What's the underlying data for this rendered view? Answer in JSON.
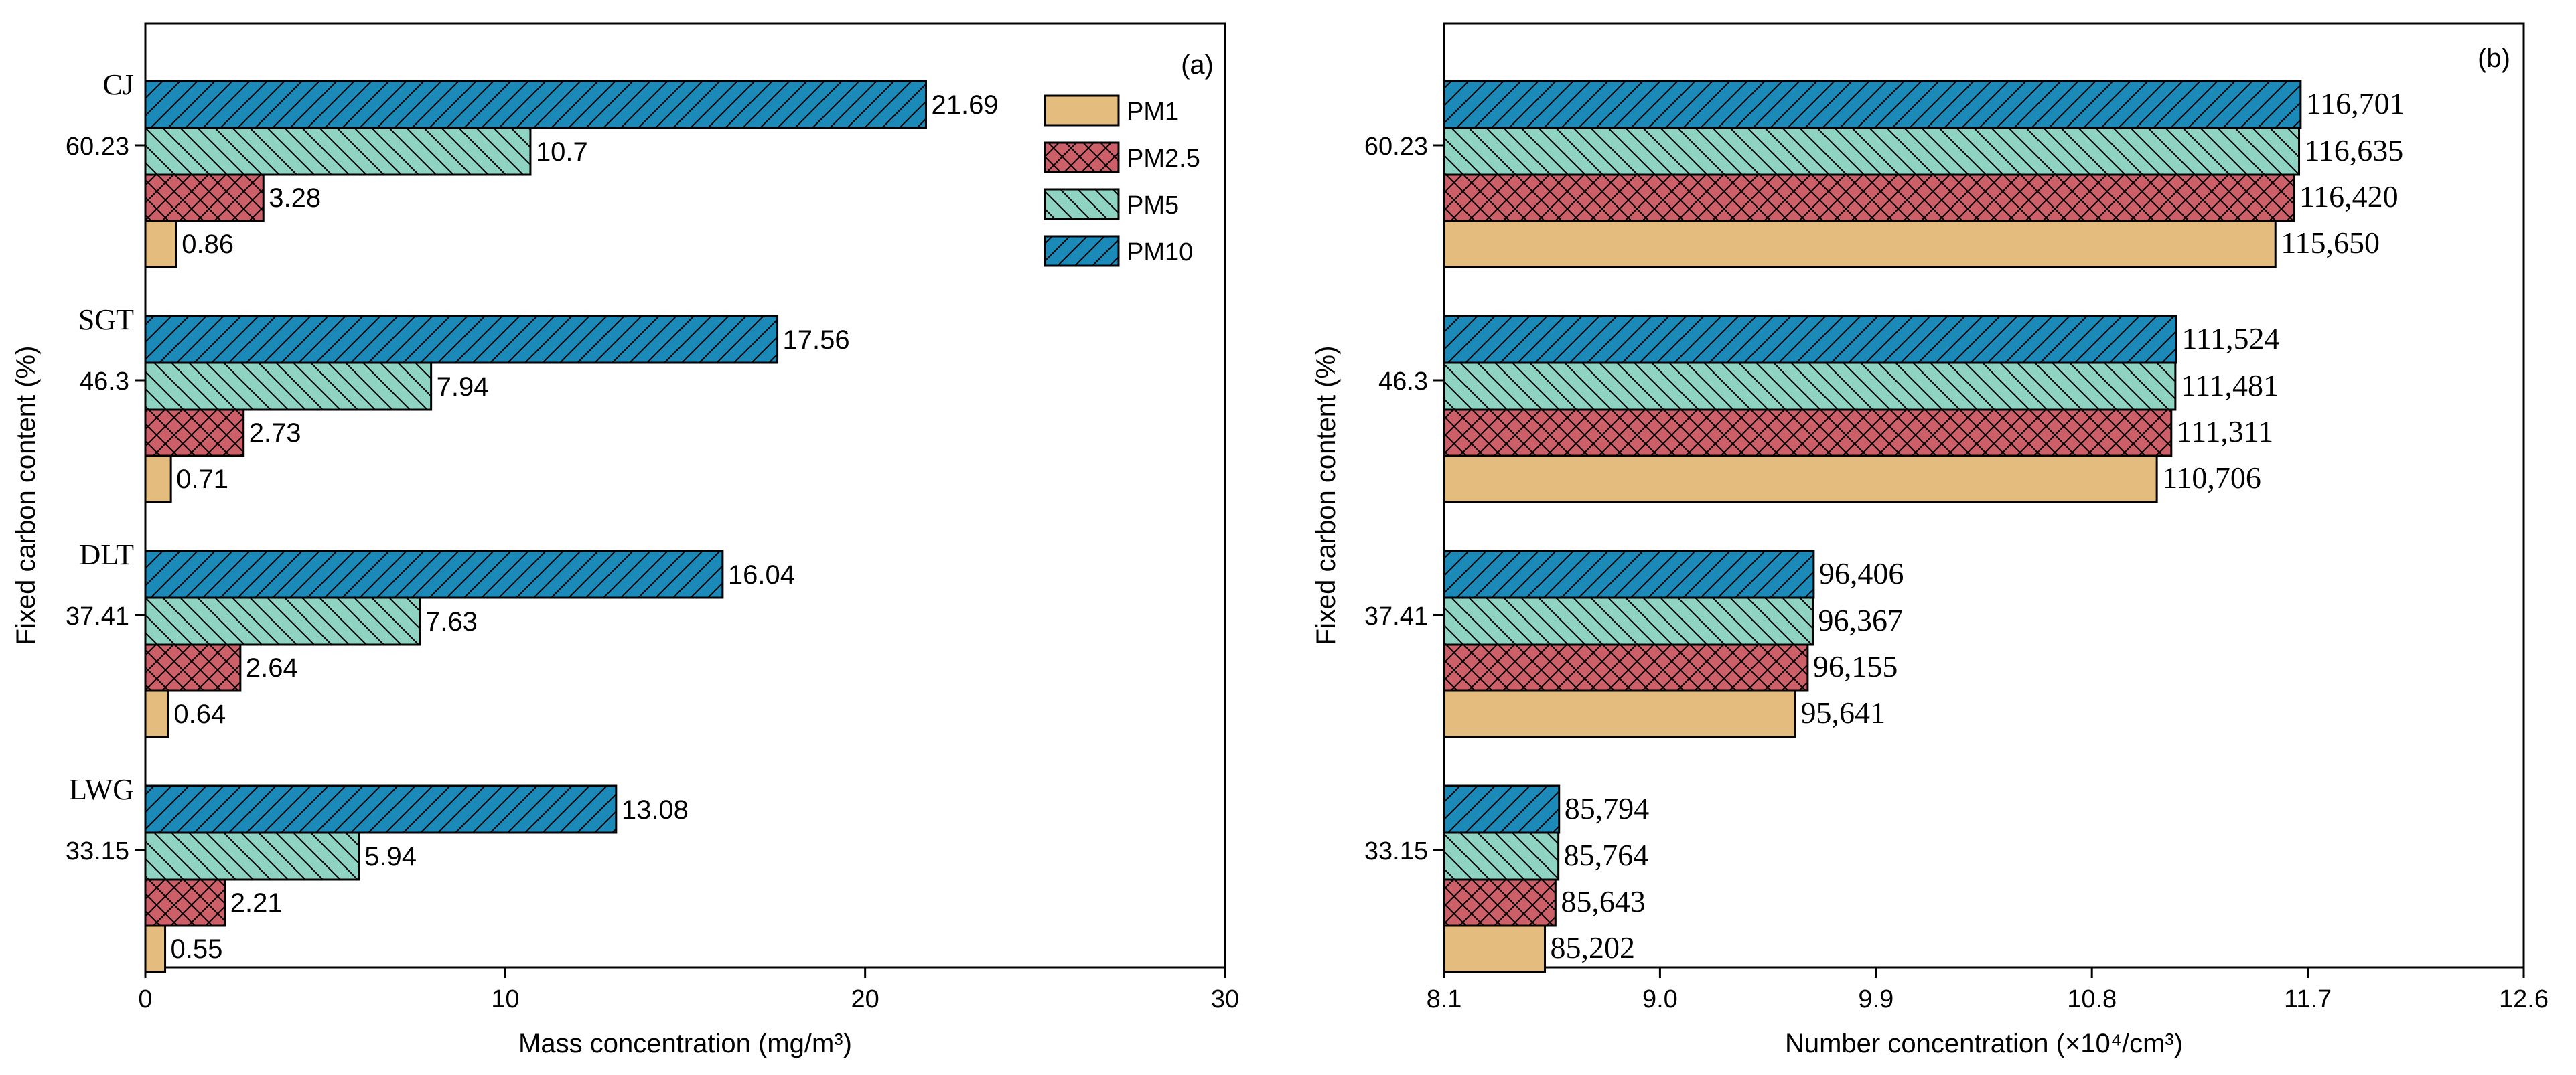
{
  "colors": {
    "PM1": "#e4bd7e",
    "PM2.5": "#cc5f68",
    "PM5": "#8fd3c2",
    "PM10": "#1b8ab8"
  },
  "chart_data": [
    {
      "type": "bar",
      "orientation": "horizontal",
      "panel_label": "(a)",
      "title": "",
      "xlabel": "Mass concentration (mg/m³)",
      "ylabel": "Fixed carbon content (%)",
      "xlim": [
        0,
        30
      ],
      "xticks": [
        "0",
        "10",
        "20",
        "30"
      ],
      "categories": [
        "60.23",
        "46.3",
        "37.41",
        "33.15"
      ],
      "group_labels": [
        "CJ",
        "SGT",
        "DLT",
        "LWG"
      ],
      "legend": [
        "PM1",
        "PM2.5",
        "PM5",
        "PM10"
      ],
      "legend_position": "top-right",
      "series": [
        {
          "name": "PM1",
          "values": [
            0.86,
            0.71,
            0.64,
            0.55
          ],
          "labels": [
            "0.86",
            "0.71",
            "0.64",
            "0.55"
          ]
        },
        {
          "name": "PM2.5",
          "values": [
            3.28,
            2.73,
            2.64,
            2.21
          ],
          "labels": [
            "3.28",
            "2.73",
            "2.64",
            "2.21"
          ]
        },
        {
          "name": "PM5",
          "values": [
            10.7,
            7.94,
            7.63,
            5.94
          ],
          "labels": [
            "10.7",
            "7.94",
            "7.63",
            "5.94"
          ]
        },
        {
          "name": "PM10",
          "values": [
            21.69,
            17.56,
            16.04,
            13.08
          ],
          "labels": [
            "21.69",
            "17.56",
            "16.04",
            "13.08"
          ]
        }
      ]
    },
    {
      "type": "bar",
      "orientation": "horizontal",
      "panel_label": "(b)",
      "title": "",
      "xlabel": "Number concentration (×10⁴/cm³)",
      "ylabel": "Fixed carbon content (%)",
      "xlim": [
        8.1,
        12.6
      ],
      "xticks": [
        "8.1",
        "9.0",
        "9.9",
        "10.8",
        "11.7",
        "12.6"
      ],
      "categories": [
        "60.23",
        "46.3",
        "37.41",
        "33.15"
      ],
      "series": [
        {
          "name": "PM1",
          "values": [
            11.565,
            11.0706,
            9.5641,
            8.5202
          ],
          "labels": [
            "115,650",
            "110,706",
            "95,641",
            "85,202"
          ]
        },
        {
          "name": "PM2.5",
          "values": [
            11.642,
            11.1311,
            9.6155,
            8.5643
          ],
          "labels": [
            "116,420",
            "111,311",
            "96,155",
            "85,643"
          ]
        },
        {
          "name": "PM5",
          "values": [
            11.6635,
            11.1481,
            9.6367,
            8.5764
          ],
          "labels": [
            "116,635",
            "111,481",
            "96,367",
            "85,764"
          ]
        },
        {
          "name": "PM10",
          "values": [
            11.6701,
            11.1524,
            9.6406,
            8.5794
          ],
          "labels": [
            "116,701",
            "111,524",
            "96,406",
            "85,794"
          ]
        }
      ]
    }
  ]
}
